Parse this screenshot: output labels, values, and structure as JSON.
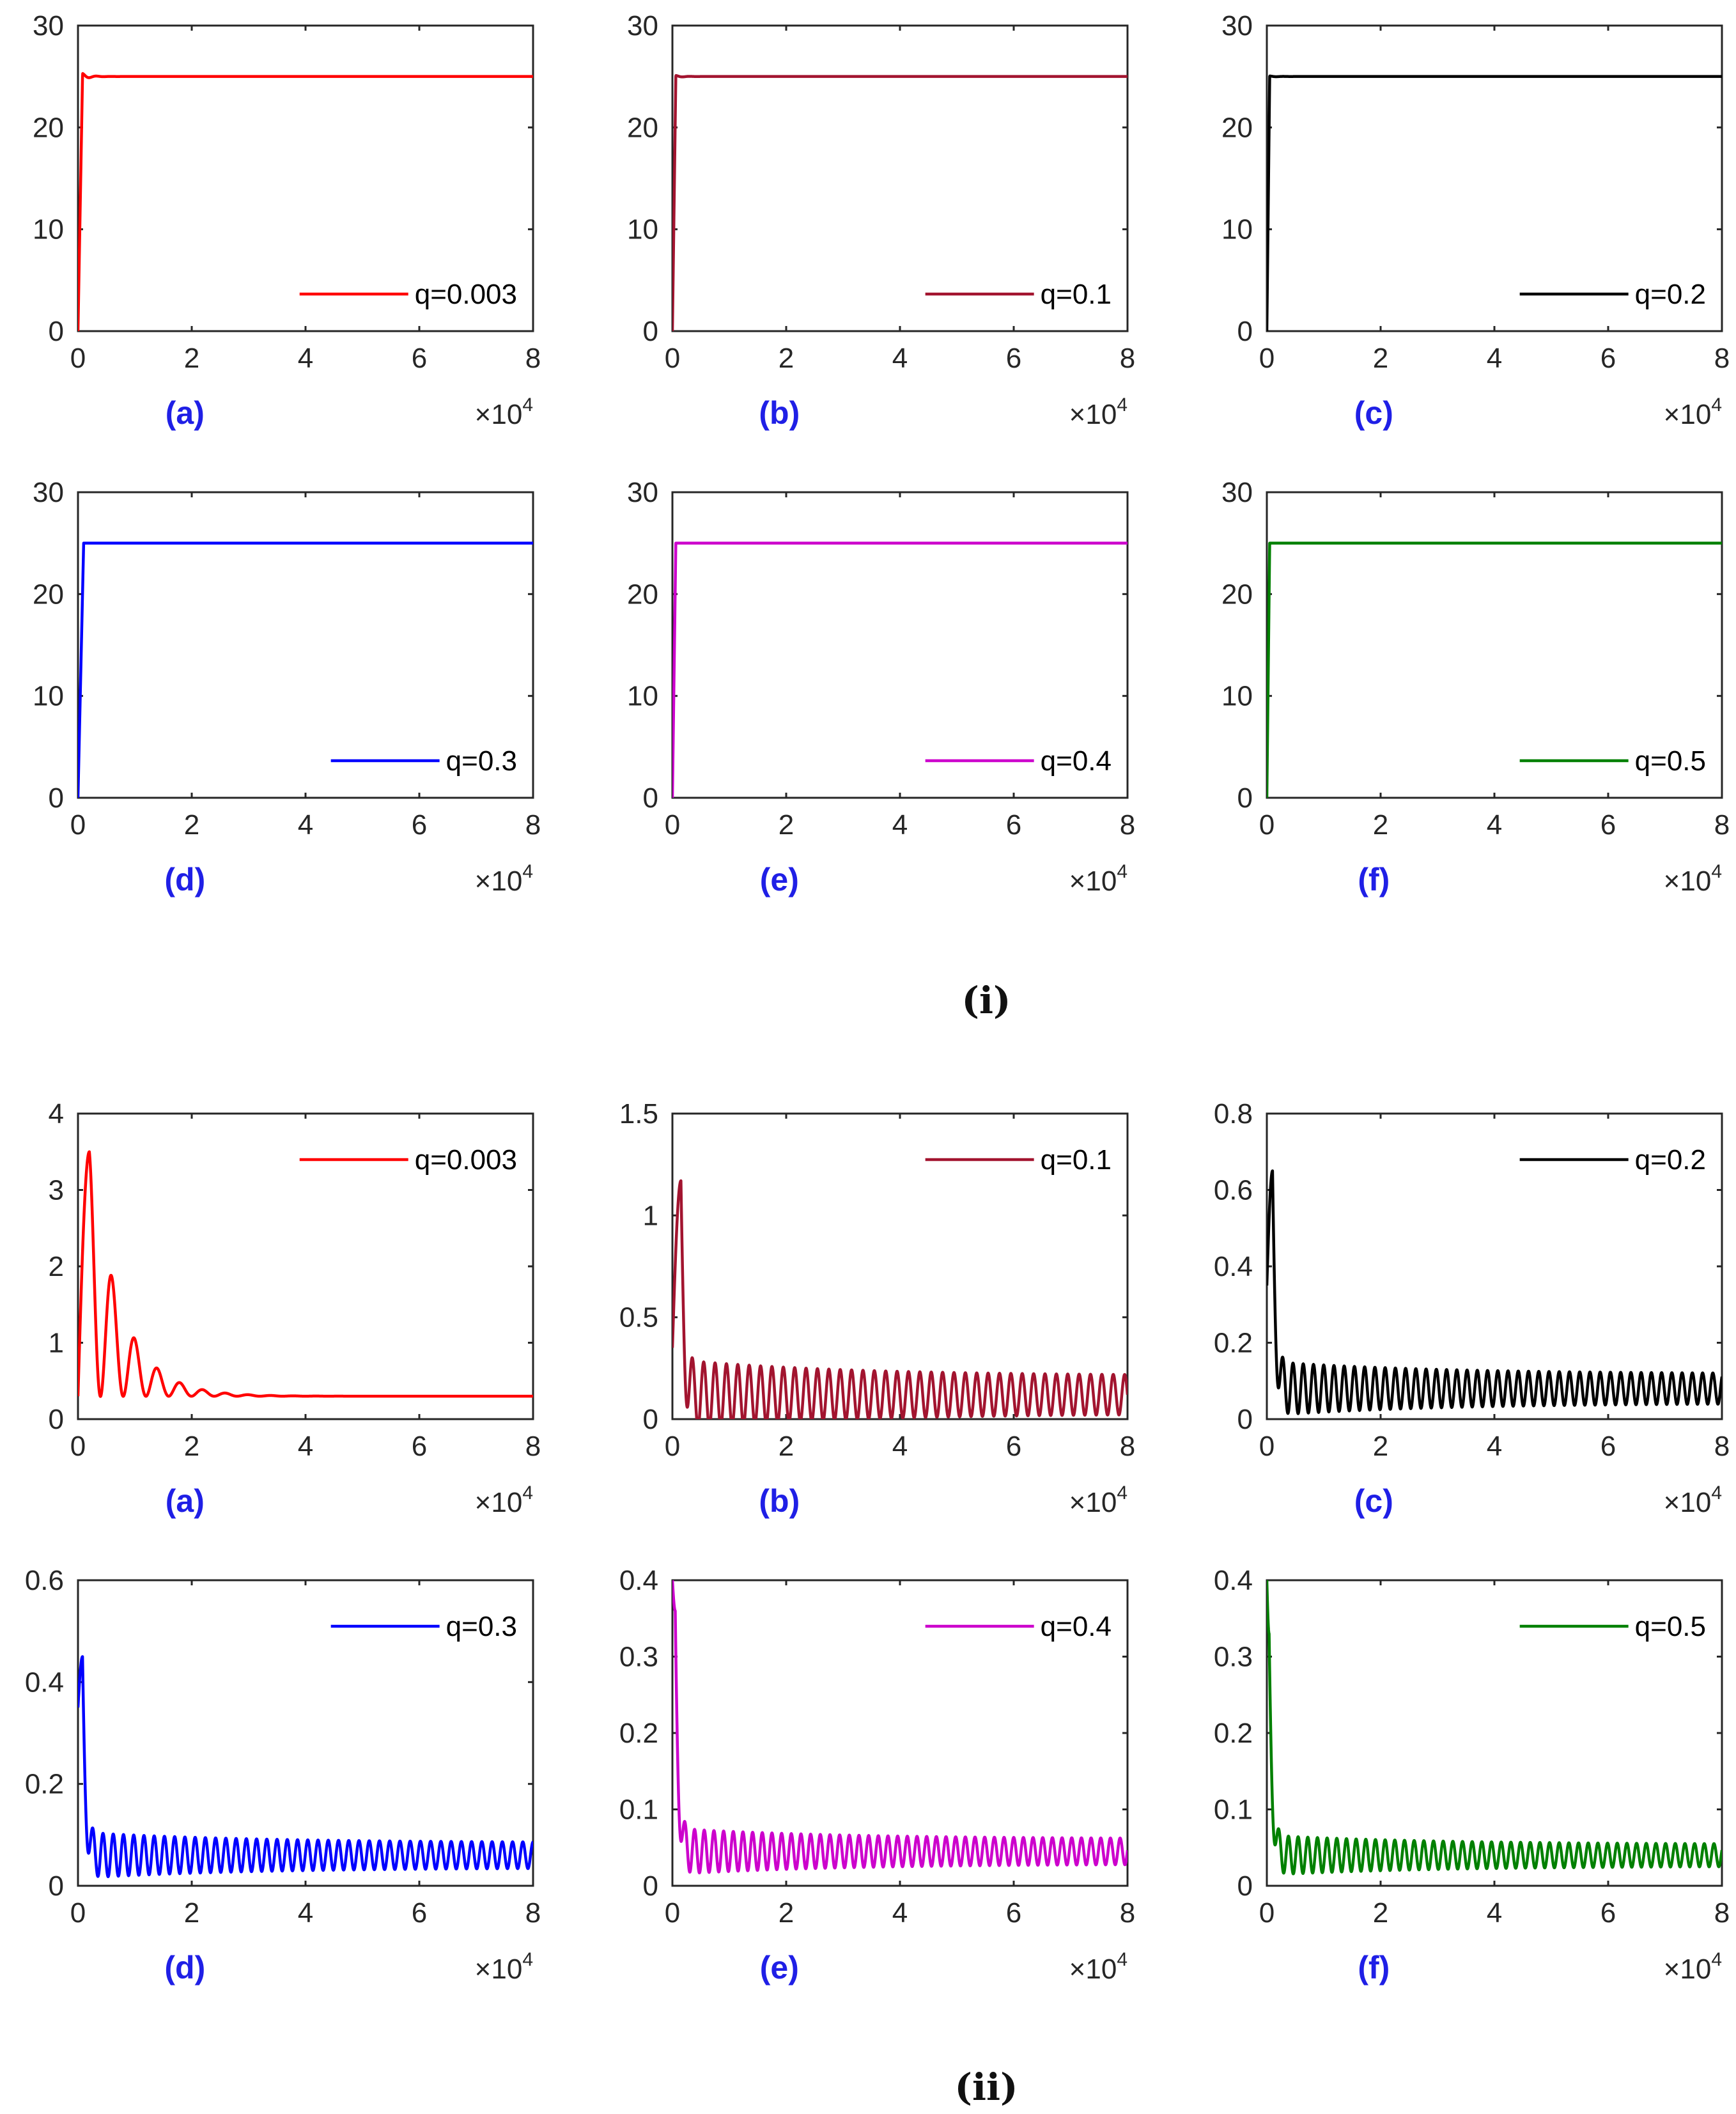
{
  "figure": {
    "groups": [
      {
        "label": "(i)"
      },
      {
        "label": "(ii)"
      }
    ]
  },
  "chart_data": [
    {
      "group": 0,
      "panel": "(a)",
      "type": "line",
      "series": [
        {
          "name": "q=0.003",
          "color": "#ff0000"
        }
      ],
      "xlim": [
        0,
        8
      ],
      "x_ticks": [
        "0",
        "2",
        "4",
        "6",
        "8"
      ],
      "x_multiplier": "×10",
      "x_multiplier_exp": "4",
      "ylim": [
        0,
        30
      ],
      "y_ticks": [
        "0",
        "10",
        "20",
        "30"
      ],
      "legend": "bottom-right",
      "dynamics": {
        "y0": 0,
        "peak": 25,
        "peak_t": 0.08,
        "steady": 25,
        "overshoot": 0.3,
        "osc_amp": 0,
        "decay": 1,
        "osc_period": 0
      }
    },
    {
      "group": 0,
      "panel": "(b)",
      "type": "line",
      "series": [
        {
          "name": "q=0.1",
          "color": "#a2142f"
        }
      ],
      "xlim": [
        0,
        8
      ],
      "x_ticks": [
        "0",
        "2",
        "4",
        "6",
        "8"
      ],
      "x_multiplier": "×10",
      "x_multiplier_exp": "4",
      "ylim": [
        0,
        30
      ],
      "y_ticks": [
        "0",
        "10",
        "20",
        "30"
      ],
      "legend": "bottom-right",
      "dynamics": {
        "y0": 0,
        "peak": 25,
        "peak_t": 0.06,
        "steady": 25,
        "overshoot": 0.1,
        "osc_amp": 0,
        "decay": 1,
        "osc_period": 0
      }
    },
    {
      "group": 0,
      "panel": "(c)",
      "type": "line",
      "series": [
        {
          "name": "q=0.2",
          "color": "#000000"
        }
      ],
      "xlim": [
        0,
        8
      ],
      "x_ticks": [
        "0",
        "2",
        "4",
        "6",
        "8"
      ],
      "x_multiplier": "×10",
      "x_multiplier_exp": "4",
      "ylim": [
        0,
        30
      ],
      "y_ticks": [
        "0",
        "10",
        "20",
        "30"
      ],
      "legend": "bottom-right",
      "dynamics": {
        "y0": 0,
        "peak": 25,
        "peak_t": 0.05,
        "steady": 25,
        "overshoot": 0.05,
        "osc_amp": 0,
        "decay": 1,
        "osc_period": 0
      }
    },
    {
      "group": 0,
      "panel": "(d)",
      "type": "line",
      "series": [
        {
          "name": "q=0.3",
          "color": "#0000ff"
        }
      ],
      "xlim": [
        0,
        8
      ],
      "x_ticks": [
        "0",
        "2",
        "4",
        "6",
        "8"
      ],
      "x_multiplier": "×10",
      "x_multiplier_exp": "4",
      "ylim": [
        0,
        30
      ],
      "y_ticks": [
        "0",
        "10",
        "20",
        "30"
      ],
      "legend": "bottom-right",
      "dynamics": {
        "y0": 0,
        "peak": 25,
        "peak_t": 0.1,
        "steady": 25,
        "overshoot": 0,
        "osc_amp": 0,
        "decay": 1,
        "osc_period": 0
      }
    },
    {
      "group": 0,
      "panel": "(e)",
      "type": "line",
      "series": [
        {
          "name": "q=0.4",
          "color": "#cc00cc"
        }
      ],
      "xlim": [
        0,
        8
      ],
      "x_ticks": [
        "0",
        "2",
        "4",
        "6",
        "8"
      ],
      "x_multiplier": "×10",
      "x_multiplier_exp": "4",
      "ylim": [
        0,
        30
      ],
      "y_ticks": [
        "0",
        "10",
        "20",
        "30"
      ],
      "legend": "bottom-right",
      "dynamics": {
        "y0": 0,
        "peak": 25,
        "peak_t": 0.06,
        "steady": 25,
        "overshoot": 0,
        "osc_amp": 0,
        "decay": 1,
        "osc_period": 0
      }
    },
    {
      "group": 0,
      "panel": "(f)",
      "type": "line",
      "series": [
        {
          "name": "q=0.5",
          "color": "#008000"
        }
      ],
      "xlim": [
        0,
        8
      ],
      "x_ticks": [
        "0",
        "2",
        "4",
        "6",
        "8"
      ],
      "x_multiplier": "×10",
      "x_multiplier_exp": "4",
      "ylim": [
        0,
        30
      ],
      "y_ticks": [
        "0",
        "10",
        "20",
        "30"
      ],
      "legend": "bottom-right",
      "dynamics": {
        "y0": 0,
        "peak": 25,
        "peak_t": 0.05,
        "steady": 25,
        "overshoot": 0,
        "osc_amp": 0,
        "decay": 1,
        "osc_period": 0
      }
    },
    {
      "group": 1,
      "panel": "(a)",
      "type": "line",
      "series": [
        {
          "name": "q=0.003",
          "color": "#ff0000"
        }
      ],
      "xlim": [
        0,
        8
      ],
      "x_ticks": [
        "0",
        "2",
        "4",
        "6",
        "8"
      ],
      "x_multiplier": "×10",
      "x_multiplier_exp": "4",
      "ylim": [
        0,
        4
      ],
      "y_ticks": [
        "0",
        "1",
        "2",
        "3",
        "4"
      ],
      "legend": "top-right",
      "dynamics": {
        "y0": 0.3,
        "peak": 3.5,
        "peak_t": 0.2,
        "steady": 0.3,
        "overshoot": 0,
        "osc_amp": 3.2,
        "decay": 0.85,
        "osc_period": 0.4
      }
    },
    {
      "group": 1,
      "panel": "(b)",
      "type": "line",
      "series": [
        {
          "name": "q=0.1",
          "color": "#a2142f"
        }
      ],
      "xlim": [
        0,
        8
      ],
      "x_ticks": [
        "0",
        "2",
        "4",
        "6",
        "8"
      ],
      "x_multiplier": "×10",
      "x_multiplier_exp": "4",
      "ylim": [
        0,
        1.5
      ],
      "y_ticks": [
        "0",
        "0.5",
        "1",
        "1.5"
      ],
      "legend": "top-right",
      "dynamics": {
        "y0": 0.35,
        "peak": 1.17,
        "peak_t": 0.15,
        "steady": 0.12,
        "overshoot": 0,
        "osc_amp": 0.17,
        "decay": 0.08,
        "osc_period": 0.2
      }
    },
    {
      "group": 1,
      "panel": "(c)",
      "type": "line",
      "series": [
        {
          "name": "q=0.2",
          "color": "#000000"
        }
      ],
      "xlim": [
        0,
        8
      ],
      "x_ticks": [
        "0",
        "2",
        "4",
        "6",
        "8"
      ],
      "x_multiplier": "×10",
      "x_multiplier_exp": "4",
      "ylim": [
        0,
        0.8
      ],
      "y_ticks": [
        "0",
        "0.2",
        "0.4",
        "0.6",
        "0.8"
      ],
      "legend": "top-right",
      "dynamics": {
        "y0": 0.35,
        "peak": 0.65,
        "peak_t": 0.1,
        "steady": 0.08,
        "overshoot": 0,
        "osc_amp": 0.07,
        "decay": 0.06,
        "osc_period": 0.18
      }
    },
    {
      "group": 1,
      "panel": "(d)",
      "type": "line",
      "series": [
        {
          "name": "q=0.3",
          "color": "#0000ff"
        }
      ],
      "xlim": [
        0,
        8
      ],
      "x_ticks": [
        "0",
        "2",
        "4",
        "6",
        "8"
      ],
      "x_multiplier": "×10",
      "x_multiplier_exp": "4",
      "ylim": [
        0,
        0.6
      ],
      "y_ticks": [
        "0",
        "0.2",
        "0.4",
        "0.6"
      ],
      "legend": "top-right",
      "dynamics": {
        "y0": 0.35,
        "peak": 0.45,
        "peak_t": 0.08,
        "steady": 0.06,
        "overshoot": 0,
        "osc_amp": 0.045,
        "decay": 0.05,
        "osc_period": 0.18
      }
    },
    {
      "group": 1,
      "panel": "(e)",
      "type": "line",
      "series": [
        {
          "name": "q=0.4",
          "color": "#cc00cc"
        }
      ],
      "xlim": [
        0,
        8
      ],
      "x_ticks": [
        "0",
        "2",
        "4",
        "6",
        "8"
      ],
      "x_multiplier": "×10",
      "x_multiplier_exp": "4",
      "ylim": [
        0,
        0.4
      ],
      "y_ticks": [
        "0",
        "0.1",
        "0.2",
        "0.3",
        "0.4"
      ],
      "legend": "top-right",
      "dynamics": {
        "y0": 0.4,
        "peak": 0.36,
        "peak_t": 0.05,
        "steady": 0.045,
        "overshoot": 0,
        "osc_amp": 0.03,
        "decay": 0.04,
        "osc_period": 0.17
      }
    },
    {
      "group": 1,
      "panel": "(f)",
      "type": "line",
      "series": [
        {
          "name": "q=0.5",
          "color": "#008000"
        }
      ],
      "xlim": [
        0,
        8
      ],
      "x_ticks": [
        "0",
        "2",
        "4",
        "6",
        "8"
      ],
      "x_multiplier": "×10",
      "x_multiplier_exp": "4",
      "ylim": [
        0,
        0.4
      ],
      "y_ticks": [
        "0",
        "0.1",
        "0.2",
        "0.3",
        "0.4"
      ],
      "legend": "top-right",
      "dynamics": {
        "y0": 0.4,
        "peak": 0.33,
        "peak_t": 0.04,
        "steady": 0.04,
        "overshoot": 0,
        "osc_amp": 0.026,
        "decay": 0.03,
        "osc_period": 0.17
      }
    }
  ]
}
